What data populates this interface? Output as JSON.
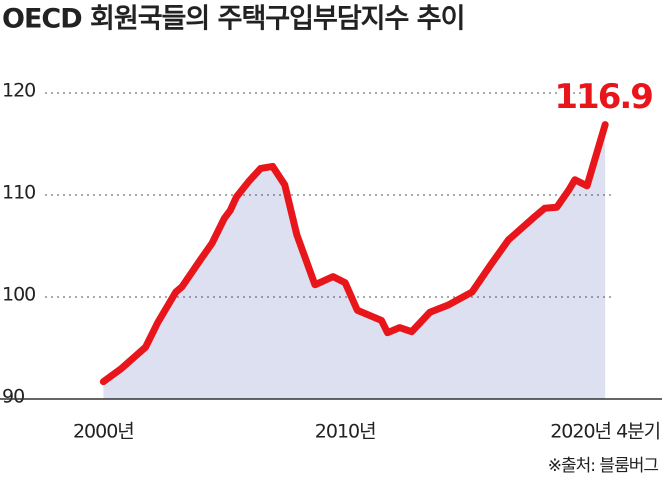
{
  "chart_data": {
    "type": "area-line",
    "title": "OECD 회원국들의 주택구입부담지수 추이",
    "x": [
      2000,
      2000.75,
      2001.75,
      2002.25,
      2003,
      2003.25,
      2004,
      2004.5,
      2005,
      2005.25,
      2005.5,
      2006,
      2006.5,
      2007,
      2007.5,
      2008,
      2008.75,
      2009.5,
      2010,
      2010.5,
      2011.5,
      2011.75,
      2012.25,
      2012.75,
      2013.5,
      2014.25,
      2015.25,
      2016,
      2016.75,
      2017.75,
      2018.25,
      2018.75,
      2019.25,
      2019.5,
      2020,
      2020.75
    ],
    "values": [
      91.7,
      93.0,
      95.1,
      97.5,
      100.5,
      101.0,
      103.6,
      105.3,
      107.7,
      108.5,
      109.8,
      111.3,
      112.6,
      112.8,
      111.0,
      106.1,
      101.2,
      102.0,
      101.4,
      98.7,
      97.7,
      96.5,
      97.0,
      96.6,
      98.5,
      99.2,
      100.5,
      103.1,
      105.6,
      107.7,
      108.7,
      108.8,
      110.5,
      111.5,
      110.9,
      116.9
    ],
    "color": "#e8151b",
    "fill_color": "#dde0f0",
    "annotation": "116.9",
    "xlim": [
      1998,
      2023.1
    ],
    "xticks": [
      {
        "value": 2000,
        "label": "2000년"
      },
      {
        "value": 2010,
        "label": "2010년"
      },
      {
        "value": 2020.75,
        "label": "2020년 4분기"
      }
    ],
    "ylim": [
      90,
      125
    ],
    "yticks": [
      90,
      100,
      110,
      120
    ],
    "grid": true,
    "source": "※출처: 블룸버그"
  }
}
